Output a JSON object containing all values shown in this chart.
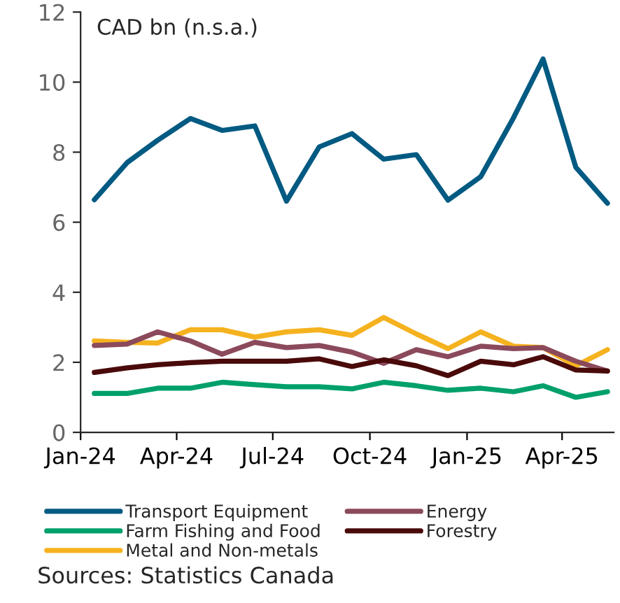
{
  "chart_data": {
    "type": "line",
    "x": [
      "2024-01-14",
      "2024-02-14",
      "2024-03-14",
      "2024-04-14",
      "2024-05-14",
      "2024-06-14",
      "2024-07-14",
      "2024-08-14",
      "2024-09-14",
      "2024-10-14",
      "2024-11-14",
      "2024-12-14",
      "2025-01-14",
      "2025-02-14",
      "2025-03-14",
      "2025-04-14",
      "2025-05-14"
    ],
    "series": [
      {
        "name": "Transport Equipment",
        "color": "#005a82",
        "values": [
          6.64,
          7.7,
          8.34,
          8.96,
          8.62,
          8.75,
          6.6,
          8.15,
          8.53,
          7.8,
          7.93,
          6.63,
          7.3,
          8.98,
          10.66,
          7.57,
          6.54
        ]
      },
      {
        "name": "Farm Fishing and Food",
        "color": "#00a06b",
        "values": [
          1.11,
          1.11,
          1.26,
          1.26,
          1.43,
          1.36,
          1.3,
          1.3,
          1.24,
          1.43,
          1.33,
          1.2,
          1.26,
          1.16,
          1.33,
          1.0,
          1.16
        ]
      },
      {
        "name": "Metal and Non-metals",
        "color": "#f5b21f",
        "values": [
          2.61,
          2.57,
          2.55,
          2.93,
          2.93,
          2.72,
          2.87,
          2.93,
          2.77,
          3.28,
          2.81,
          2.39,
          2.87,
          2.46,
          2.42,
          1.9,
          2.36
        ]
      },
      {
        "name": "Energy",
        "color": "#8b4a5b",
        "values": [
          2.48,
          2.52,
          2.87,
          2.61,
          2.23,
          2.57,
          2.42,
          2.48,
          2.29,
          1.97,
          2.36,
          2.16,
          2.46,
          2.39,
          2.42,
          2.03,
          1.75
        ]
      },
      {
        "name": "Forestry",
        "color": "#4a0a0a",
        "values": [
          1.71,
          1.84,
          1.93,
          1.99,
          2.03,
          2.03,
          2.03,
          2.1,
          1.88,
          2.07,
          1.9,
          1.62,
          2.03,
          1.93,
          2.16,
          1.78,
          1.75
        ]
      }
    ],
    "xlim": [
      "2024-01-01",
      "2025-05-20"
    ],
    "xticks": [
      {
        "value": "2024-01-01",
        "label": "Jan-24"
      },
      {
        "value": "2024-04-01",
        "label": "Apr-24"
      },
      {
        "value": "2024-07-01",
        "label": "Jul-24"
      },
      {
        "value": "2024-10-01",
        "label": "Oct-24"
      },
      {
        "value": "2025-01-01",
        "label": "Jan-25"
      },
      {
        "value": "2025-04-01",
        "label": "Apr-25"
      }
    ],
    "ylim": [
      0,
      12
    ],
    "yticks": [
      0,
      2,
      4,
      6,
      8,
      10,
      12
    ],
    "grid": false,
    "legend": "bottom",
    "marker": "none",
    "line_style": "solid",
    "annotations": [
      "CAD bn (n.s.a.)",
      "Sources: Statistics Canada"
    ]
  }
}
